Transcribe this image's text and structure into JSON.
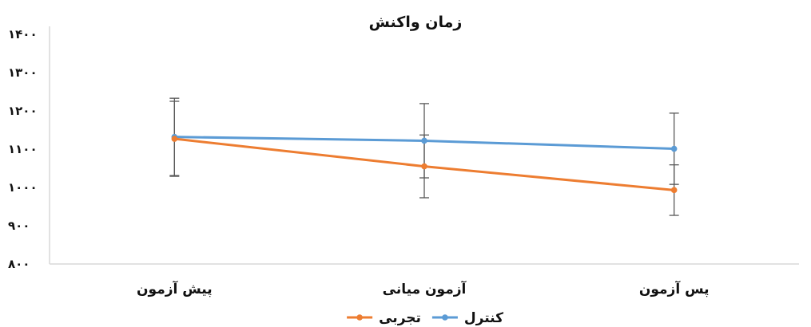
{
  "chart_data": {
    "type": "line",
    "title": "زمان واکنش",
    "categories": [
      "پیش آزمون",
      "آزمون میانی",
      "پس آزمون"
    ],
    "y_ticks": [
      "۸۰۰",
      "۹۰۰",
      "۱۰۰۰",
      "۱۱۰۰",
      "۱۲۰۰",
      "۱۳۰۰",
      "۱۴۰۰"
    ],
    "ylim": [
      800,
      1400
    ],
    "grid": false,
    "legend_position": "bottom",
    "series": [
      {
        "name": "کنترل",
        "color": "#5B9BD5",
        "values": [
          1132,
          1122,
          1101
        ],
        "error": [
          101,
          97,
          93
        ]
      },
      {
        "name": "تجربی",
        "color": "#ED7D31",
        "values": [
          1127,
          1055,
          993
        ],
        "error": [
          98,
          82,
          66
        ]
      }
    ]
  }
}
